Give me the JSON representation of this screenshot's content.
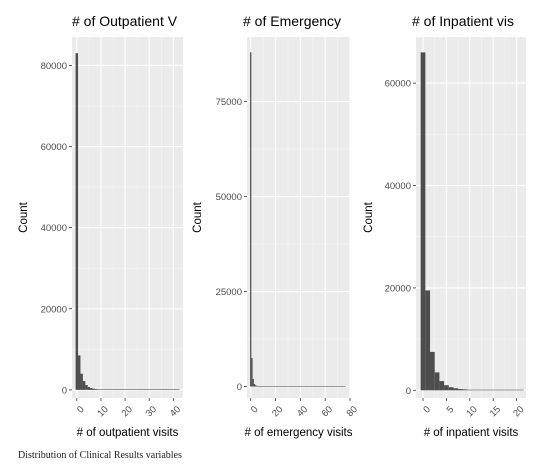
{
  "caption": "Distribution of Clinical Results variables",
  "colors": {
    "panel": "#ebebeb",
    "grid_major": "#ffffff",
    "bar": "#4d4d4d",
    "tick_text": "#4d4d4d",
    "text": "#000000"
  },
  "chart_data": [
    {
      "type": "bar",
      "title": "# of Outpatient V",
      "xlabel": "# of outpatient visits",
      "ylabel": "Count",
      "xlim": [
        -2,
        44
      ],
      "ylim": [
        -2000,
        87000
      ],
      "xticks": [
        0,
        10,
        20,
        30,
        40
      ],
      "xtick_labels": [
        "0",
        "10",
        "20",
        "30",
        "40"
      ],
      "yticks": [
        0,
        20000,
        40000,
        60000,
        80000
      ],
      "ytick_labels": [
        "0",
        "20000",
        "40000",
        "60000",
        "80000"
      ],
      "bin_width": 1,
      "x": [
        0,
        1,
        2,
        3,
        4,
        5,
        6,
        7,
        8,
        9,
        10,
        11,
        12,
        13,
        14,
        15,
        16,
        17,
        18,
        19,
        20,
        21,
        22,
        23,
        24,
        25,
        26,
        27,
        28,
        29,
        30,
        31,
        32,
        33,
        34,
        35,
        36,
        37,
        38,
        39,
        40,
        41,
        42
      ],
      "values": [
        83000,
        8500,
        4000,
        2200,
        1200,
        700,
        450,
        300,
        200,
        150,
        120,
        100,
        80,
        60,
        50,
        40,
        30,
        25,
        20,
        15,
        15,
        12,
        10,
        8,
        8,
        6,
        6,
        5,
        5,
        5,
        4,
        4,
        4,
        4,
        3,
        3,
        3,
        3,
        3,
        3,
        3,
        3,
        3
      ],
      "grid": true
    },
    {
      "type": "bar",
      "title": "# of Emergency",
      "xlabel": "# of emergency visits",
      "ylabel": "Count",
      "xlim": [
        -3,
        80
      ],
      "ylim": [
        -3000,
        92000
      ],
      "xticks": [
        0,
        20,
        40,
        60,
        80
      ],
      "xtick_labels": [
        "0",
        "20",
        "40",
        "60",
        "80"
      ],
      "yticks": [
        0,
        25000,
        50000,
        75000
      ],
      "ytick_labels": [
        "0",
        "25000",
        "50000",
        "75000"
      ],
      "bin_width": 1,
      "x": [
        0,
        1,
        2,
        3,
        4,
        5,
        6,
        7,
        8,
        9,
        10,
        11,
        12,
        13,
        14,
        15,
        16,
        17,
        18,
        19,
        20,
        21,
        22,
        23,
        24,
        25,
        26,
        27,
        28,
        29,
        30,
        31,
        32,
        33,
        34,
        35,
        36,
        37,
        38,
        39,
        40,
        41,
        42,
        43,
        44,
        45,
        46,
        47,
        48,
        49,
        50,
        51,
        52,
        53,
        54,
        55,
        56,
        57,
        58,
        59,
        60,
        61,
        62,
        63,
        64,
        65,
        66,
        67,
        68,
        69,
        70,
        71,
        72,
        73,
        74,
        75,
        76
      ],
      "values": [
        88000,
        7500,
        2000,
        700,
        350,
        200,
        120,
        80,
        50,
        35,
        25,
        20,
        15,
        12,
        10,
        8,
        6,
        5,
        5,
        4,
        4,
        4,
        4,
        4,
        4,
        4,
        4,
        4,
        4,
        4,
        4,
        4,
        4,
        4,
        4,
        4,
        4,
        4,
        4,
        4,
        4,
        4,
        4,
        4,
        4,
        4,
        4,
        4,
        4,
        4,
        4,
        4,
        4,
        4,
        4,
        4,
        4,
        4,
        4,
        4,
        4,
        4,
        4,
        4,
        4,
        4,
        4,
        4,
        4,
        4,
        4,
        4,
        4,
        4,
        4,
        4,
        4
      ],
      "grid": true
    },
    {
      "type": "bar",
      "title": "# of Inpatient vis",
      "xlabel": "# of inpatient visits",
      "ylabel": "Count",
      "xlim": [
        -1.5,
        22
      ],
      "ylim": [
        -1500,
        69000
      ],
      "xticks": [
        0,
        5,
        10,
        15,
        20
      ],
      "xtick_labels": [
        "0",
        "5",
        "10",
        "15",
        "20"
      ],
      "yticks": [
        0,
        20000,
        40000,
        60000
      ],
      "ytick_labels": [
        "0",
        "20000",
        "40000",
        "60000"
      ],
      "bin_width": 1,
      "x": [
        0,
        1,
        2,
        3,
        4,
        5,
        6,
        7,
        8,
        9,
        10,
        11,
        12,
        13,
        14,
        15,
        16,
        17,
        18,
        19,
        20,
        21
      ],
      "values": [
        66000,
        19500,
        7500,
        3500,
        1800,
        1000,
        600,
        400,
        250,
        180,
        120,
        90,
        70,
        50,
        40,
        30,
        25,
        20,
        15,
        12,
        10,
        8
      ],
      "grid": true
    }
  ]
}
